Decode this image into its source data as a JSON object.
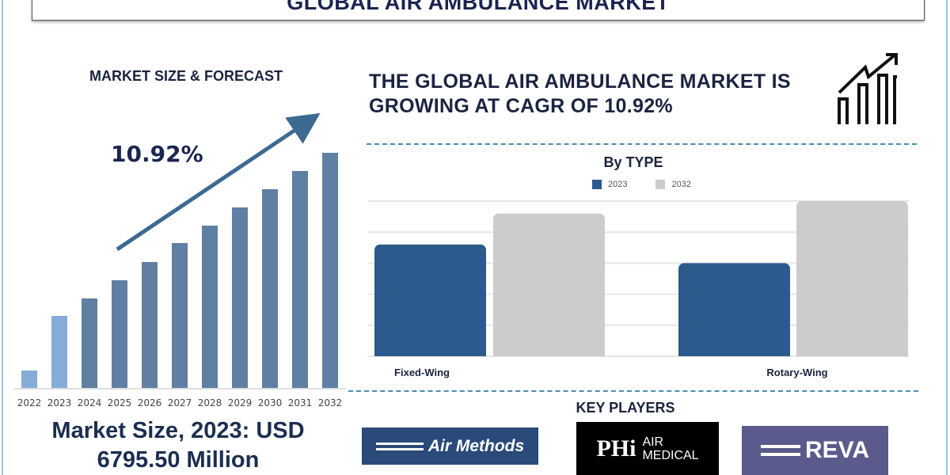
{
  "title": "GLOBAL AIR AMBULANCE MARKET",
  "left_panel": {
    "heading": "MARKET SIZE & FORECAST",
    "cagr_label": "10.92%",
    "market_size_line1": "Market Size, 2023: USD",
    "market_size_line2": "6795.50 Million"
  },
  "headline": {
    "line1": "THE GLOBAL AIR AMBULANCE MARKET IS",
    "line2": "GROWING AT CAGR OF 10.92%",
    "icon": "growth-chart-icon"
  },
  "key_players": {
    "heading": "KEY PLAYERS",
    "logos": [
      "Air Methods",
      "PHI AIR MEDICAL",
      "REVA"
    ]
  },
  "colors": {
    "title": "#1b2350",
    "forecast_bar": "#5f7fa3",
    "historic_bar": "#85acd6",
    "series_2023": "#2a5b8c",
    "series_2032": "#cccccc",
    "dash": "#4a8fb5"
  },
  "chart_data": [
    {
      "type": "bar",
      "title": "",
      "categories": [
        "2022",
        "2023",
        "2024",
        "2025",
        "2026",
        "2027",
        "2028",
        "2029",
        "2030",
        "2031",
        "2032"
      ],
      "values": [
        22,
        91,
        113,
        136,
        159,
        183,
        205,
        228,
        251,
        274,
        297
      ],
      "value_note": "relative heights, no axis printed",
      "highlighted_categories": [
        "2022",
        "2023"
      ],
      "trend_arrow": true,
      "grid": false
    },
    {
      "type": "bar",
      "title": "By TYPE",
      "categories": [
        "Fixed-Wing",
        "Rotary-Wing"
      ],
      "series": [
        {
          "name": "2023",
          "values": [
            3.6,
            3.0
          ]
        },
        {
          "name": "2032",
          "values": [
            4.6,
            5.0
          ]
        }
      ],
      "ylim": [
        0,
        5
      ],
      "grid": true,
      "legend": "top"
    }
  ]
}
